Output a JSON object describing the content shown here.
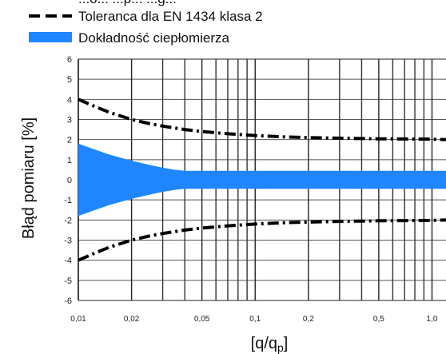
{
  "chart_data": {
    "type": "area",
    "x_scale": "log",
    "xlim": [
      0.01,
      1.2
    ],
    "ylim": [
      -6,
      6
    ],
    "xlabel": "[q/q",
    "xlabel_sub": "p",
    "xlabel_close": "]",
    "ylabel": "Błąd pomiaru [%]",
    "grid": true,
    "legend_position": "top",
    "y_ticks": [
      6,
      5,
      4,
      3,
      2,
      1,
      0,
      -1,
      -2,
      -3,
      -4,
      -5,
      -6
    ],
    "x_ticks": [
      {
        "value": 0.01,
        "label": "0,01"
      },
      {
        "value": 0.02,
        "label": "0,02"
      },
      {
        "value": 0.05,
        "label": "0,05"
      },
      {
        "value": 0.1,
        "label": "0,1"
      },
      {
        "value": 0.2,
        "label": "0,2"
      },
      {
        "value": 0.5,
        "label": "0,5"
      },
      {
        "value": 1.0,
        "label": "1,0"
      }
    ],
    "minor_grid_x": [
      0.03,
      0.04,
      0.06,
      0.07,
      0.08,
      0.09,
      0.3,
      0.4,
      0.6,
      0.7,
      0.8,
      0.9
    ],
    "series": [
      {
        "name": "Tolerancja dla EN 1434 klasa 2",
        "label": "Toleranca dla EN 1434 klasa 2",
        "style": "dash-dot",
        "color": "#000000",
        "x": [
          0.01,
          0.012,
          0.015,
          0.02,
          0.025,
          0.03,
          0.04,
          0.05,
          0.07,
          0.1,
          0.15,
          0.2,
          0.3,
          0.5,
          0.7,
          1.0,
          1.2
        ],
        "upper": [
          4.0,
          3.7,
          3.35,
          3.0,
          2.8,
          2.67,
          2.5,
          2.4,
          2.29,
          2.2,
          2.13,
          2.1,
          2.07,
          2.04,
          2.03,
          2.02,
          2.0
        ],
        "lower": [
          -4.0,
          -3.7,
          -3.35,
          -3.0,
          -2.8,
          -2.67,
          -2.5,
          -2.4,
          -2.29,
          -2.2,
          -2.13,
          -2.1,
          -2.07,
          -2.04,
          -2.03,
          -2.02,
          -2.0
        ]
      },
      {
        "name": "Dokładność ciepłomierza",
        "label": "Dokładność ciepłomierza",
        "style": "filled-band",
        "color": "#1f86ff",
        "x": [
          0.01,
          0.012,
          0.015,
          0.02,
          0.025,
          0.03,
          0.035,
          0.04,
          0.05,
          0.1,
          0.5,
          1.2
        ],
        "upper": [
          1.8,
          1.55,
          1.25,
          0.95,
          0.75,
          0.6,
          0.5,
          0.45,
          0.45,
          0.45,
          0.45,
          0.45
        ],
        "lower": [
          -1.8,
          -1.55,
          -1.25,
          -0.95,
          -0.75,
          -0.6,
          -0.5,
          -0.45,
          -0.45,
          -0.45,
          -0.45,
          -0.45
        ]
      }
    ],
    "legend_partial_text": "...ó... ...p... ...g..."
  }
}
